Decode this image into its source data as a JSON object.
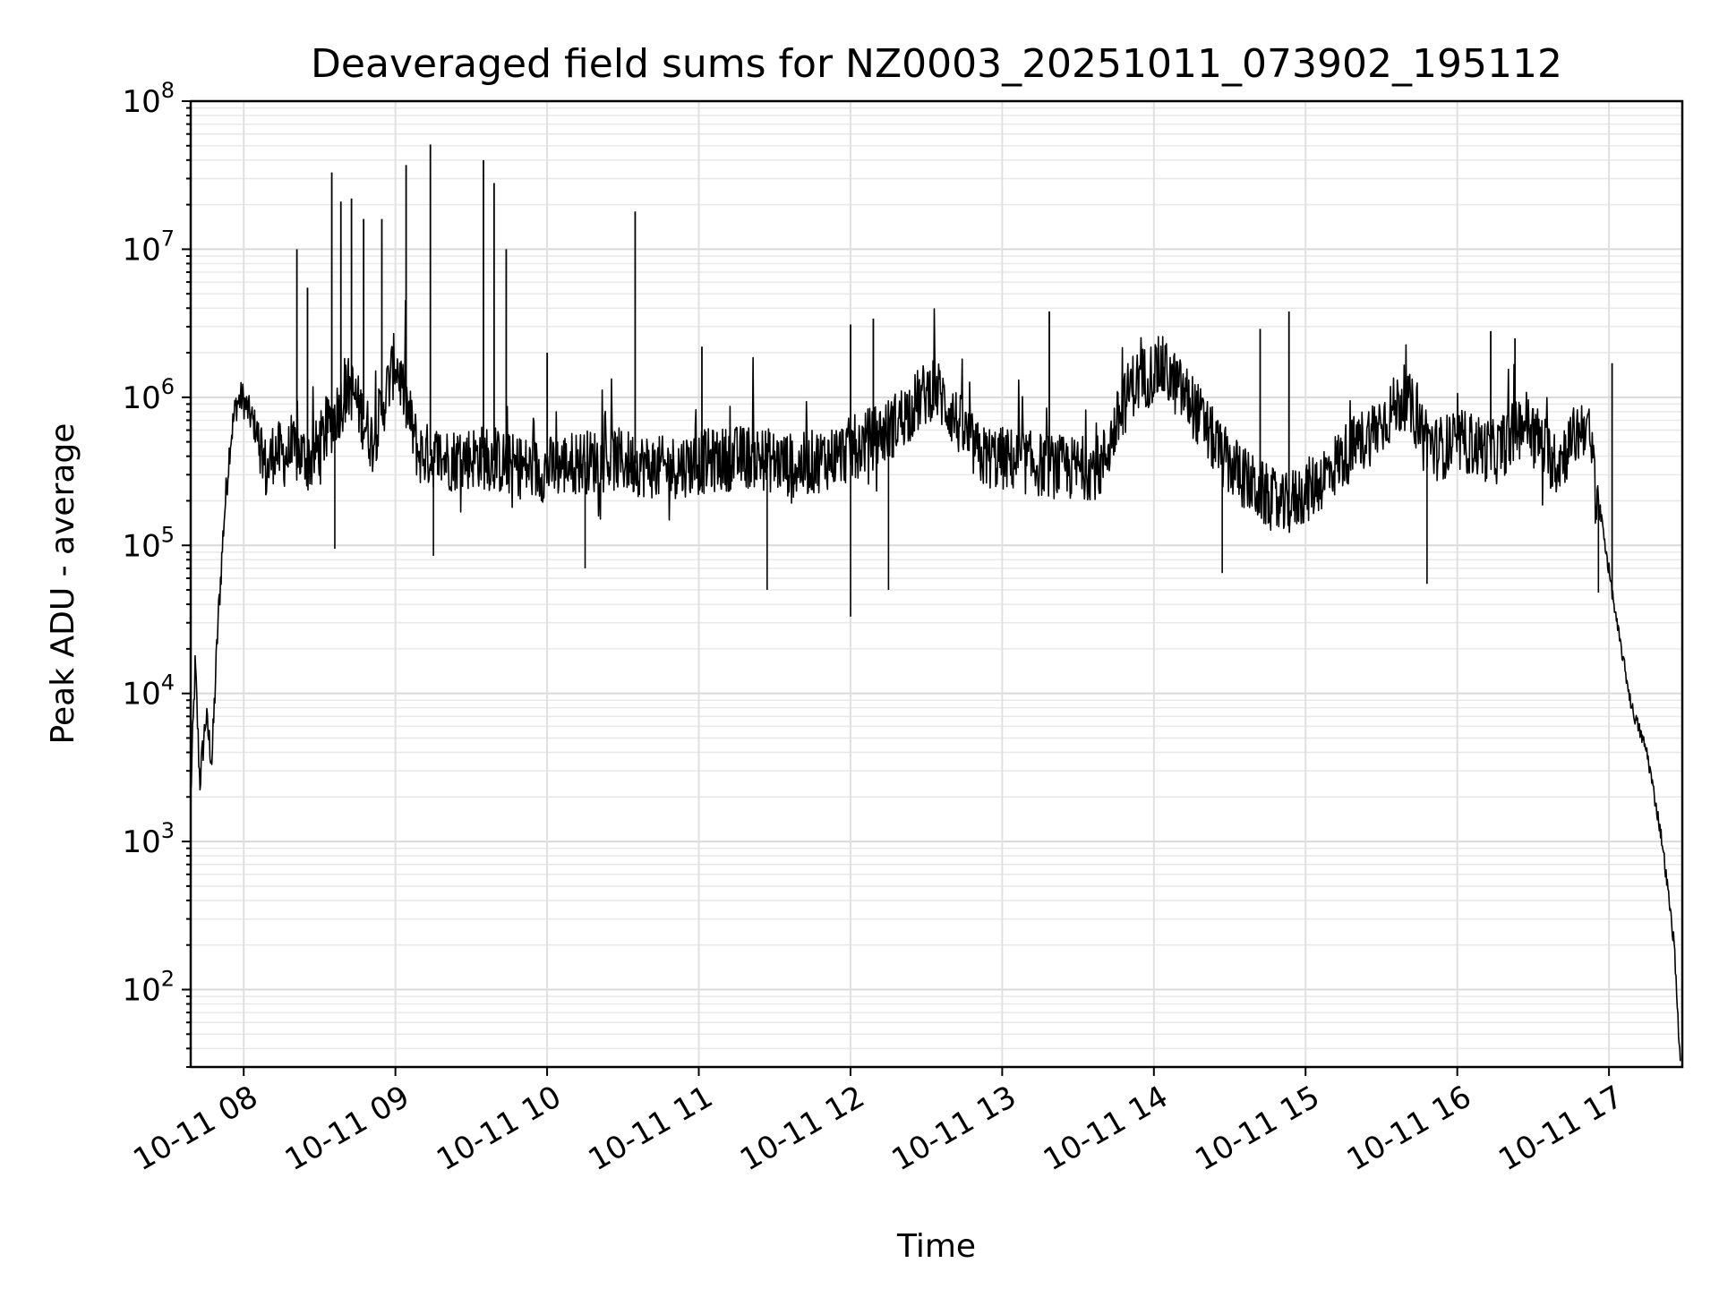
{
  "chart_data": {
    "type": "line",
    "title": "Deaveraged field sums for NZ0003_20251011_073902_195112",
    "xlabel": "Time",
    "ylabel": "Peak ADU - average",
    "yscale": "log",
    "ylim": [
      30,
      100000000
    ],
    "xlim": [
      "2025-10-11T07:39:02",
      "2025-10-11T17:29:00"
    ],
    "grid": true,
    "x_ticks": [
      {
        "time": "2025-10-11T08:00:00",
        "label": "10-11 08"
      },
      {
        "time": "2025-10-11T09:00:00",
        "label": "10-11 09"
      },
      {
        "time": "2025-10-11T10:00:00",
        "label": "10-11 10"
      },
      {
        "time": "2025-10-11T11:00:00",
        "label": "10-11 11"
      },
      {
        "time": "2025-10-11T12:00:00",
        "label": "10-11 12"
      },
      {
        "time": "2025-10-11T13:00:00",
        "label": "10-11 13"
      },
      {
        "time": "2025-10-11T14:00:00",
        "label": "10-11 14"
      },
      {
        "time": "2025-10-11T15:00:00",
        "label": "10-11 15"
      },
      {
        "time": "2025-10-11T16:00:00",
        "label": "10-11 16"
      },
      {
        "time": "2025-10-11T17:00:00",
        "label": "10-11 17"
      }
    ],
    "y_ticks": [
      {
        "value": 100,
        "base": "10",
        "exp": "2"
      },
      {
        "value": 1000,
        "base": "10",
        "exp": "3"
      },
      {
        "value": 10000,
        "base": "10",
        "exp": "4"
      },
      {
        "value": 100000,
        "base": "10",
        "exp": "5"
      },
      {
        "value": 1000000,
        "base": "10",
        "exp": "6"
      },
      {
        "value": 10000000,
        "base": "10",
        "exp": "7"
      },
      {
        "value": 100000000,
        "base": "10",
        "exp": "8"
      }
    ],
    "series": [
      {
        "name": "Peak ADU - average",
        "color": "#000000",
        "hours_since_0739": [
          0.0,
          0.03,
          0.06,
          0.1,
          0.14,
          0.18,
          0.22,
          0.26,
          0.3,
          0.34,
          0.38,
          0.42,
          0.46,
          0.5,
          0.55,
          0.6,
          0.7,
          0.8,
          0.9,
          1.05,
          1.2,
          1.35,
          1.5,
          1.7,
          1.9,
          2.1,
          2.3,
          2.5,
          2.8,
          3.1,
          3.4,
          3.7,
          4.0,
          4.3,
          4.6,
          4.9,
          5.2,
          5.4,
          5.6,
          5.8,
          6.0,
          6.2,
          6.4,
          6.6,
          6.8,
          7.0,
          7.2,
          7.4,
          7.6,
          7.8,
          8.0,
          8.2,
          8.4,
          8.6,
          8.8,
          9.0,
          9.2,
          9.3,
          9.4,
          9.5,
          9.6,
          9.7,
          9.78,
          9.82
        ],
        "values": [
          2000,
          16000,
          2500,
          7000,
          3500,
          30000,
          150000,
          500000,
          900000,
          1000000,
          800000,
          650000,
          500000,
          300000,
          450000,
          400000,
          420000,
          380000,
          600000,
          1200000,
          500000,
          1800000,
          420000,
          380000,
          400000,
          350000,
          320000,
          360000,
          380000,
          330000,
          370000,
          400000,
          340000,
          420000,
          600000,
          1200000,
          400000,
          380000,
          350000,
          330000,
          340000,
          1200000,
          1600000,
          900000,
          400000,
          250000,
          180000,
          250000,
          400000,
          600000,
          1000000,
          450000,
          500000,
          420000,
          700000,
          350000,
          700000,
          150000,
          30000,
          8000,
          4000,
          1000,
          200,
          30
        ]
      }
    ],
    "spikes": [
      {
        "hours_since_0739": 0.7,
        "value": 10000000
      },
      {
        "hours_since_0739": 0.77,
        "value": 5500000
      },
      {
        "hours_since_0739": 0.93,
        "value": 33000000
      },
      {
        "hours_since_0739": 0.99,
        "value": 21000000
      },
      {
        "hours_since_0739": 1.06,
        "value": 22000000
      },
      {
        "hours_since_0739": 1.14,
        "value": 16000000
      },
      {
        "hours_since_0739": 1.26,
        "value": 16000000
      },
      {
        "hours_since_0739": 1.42,
        "value": 37000000
      },
      {
        "hours_since_0739": 1.58,
        "value": 51000000
      },
      {
        "hours_since_0739": 1.93,
        "value": 40000000
      },
      {
        "hours_since_0739": 2.0,
        "value": 28000000
      },
      {
        "hours_since_0739": 2.08,
        "value": 10000000
      },
      {
        "hours_since_0739": 2.35,
        "value": 2000000
      },
      {
        "hours_since_0739": 2.93,
        "value": 18000000
      },
      {
        "hours_since_0739": 3.37,
        "value": 2200000
      },
      {
        "hours_since_0739": 4.35,
        "value": 3100000
      },
      {
        "hours_since_0739": 4.5,
        "value": 3400000
      },
      {
        "hours_since_0739": 5.66,
        "value": 3800000
      },
      {
        "hours_since_0739": 7.05,
        "value": 2900000
      },
      {
        "hours_since_0739": 7.24,
        "value": 3800000
      },
      {
        "hours_since_0739": 8.57,
        "value": 2800000
      },
      {
        "hours_since_0739": 8.73,
        "value": 2500000
      },
      {
        "hours_since_0739": 9.37,
        "value": 1700000
      }
    ],
    "dips": [
      {
        "hours_since_0739": 0.95,
        "value": 95000
      },
      {
        "hours_since_0739": 1.6,
        "value": 85000
      },
      {
        "hours_since_0739": 2.6,
        "value": 70000
      },
      {
        "hours_since_0739": 3.8,
        "value": 50000
      },
      {
        "hours_since_0739": 4.35,
        "value": 33000
      },
      {
        "hours_since_0739": 4.6,
        "value": 50000
      },
      {
        "hours_since_0739": 6.8,
        "value": 65000
      },
      {
        "hours_since_0739": 8.15,
        "value": 55000
      },
      {
        "hours_since_0739": 9.28,
        "value": 48000
      }
    ]
  }
}
